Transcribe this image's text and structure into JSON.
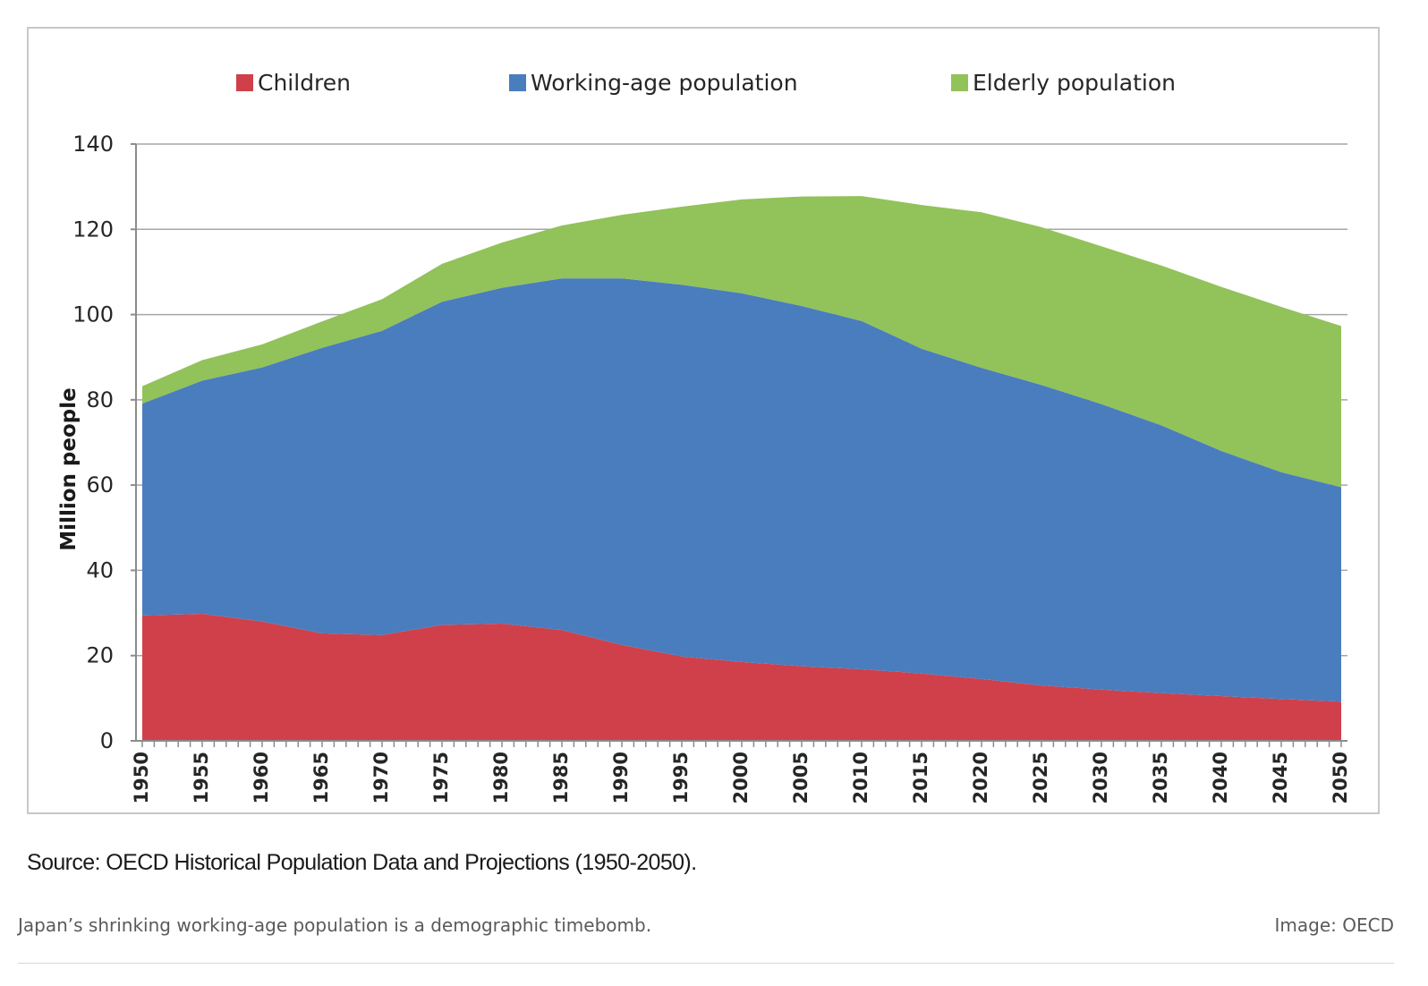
{
  "chart_data": {
    "type": "area",
    "stacked": true,
    "ylabel": "Million people",
    "ylim": [
      0,
      140
    ],
    "yticks": [
      0,
      20,
      40,
      60,
      80,
      100,
      120,
      140
    ],
    "xlim": [
      1950,
      2050
    ],
    "xticks": [
      1950,
      1955,
      1960,
      1965,
      1970,
      1975,
      1980,
      1985,
      1990,
      1995,
      2000,
      2005,
      2010,
      2015,
      2020,
      2025,
      2030,
      2035,
      2040,
      2045,
      2050
    ],
    "grid": true,
    "legend_position": "top",
    "x": [
      1950,
      1955,
      1960,
      1965,
      1970,
      1975,
      1980,
      1985,
      1990,
      1995,
      2000,
      2005,
      2010,
      2015,
      2020,
      2025,
      2030,
      2035,
      2040,
      2045,
      2050
    ],
    "series": [
      {
        "name": "Children",
        "color": "#d0404a",
        "values": [
          29.4,
          29.8,
          28.0,
          25.2,
          24.8,
          27.2,
          27.5,
          26.0,
          22.5,
          19.8,
          18.5,
          17.5,
          16.8,
          15.8,
          14.5,
          13.0,
          12.0,
          11.2,
          10.5,
          9.8,
          9.2
        ]
      },
      {
        "name": "Working-age population",
        "color": "#4a7dbe",
        "values": [
          49.7,
          54.7,
          59.6,
          67.0,
          71.4,
          75.8,
          78.8,
          82.5,
          86.0,
          87.2,
          86.5,
          84.5,
          81.7,
          76.2,
          73.0,
          70.5,
          67.0,
          62.8,
          57.5,
          53.2,
          50.3
        ]
      },
      {
        "name": "Elderly population",
        "color": "#92c25a",
        "values": [
          4.1,
          4.8,
          5.4,
          6.2,
          7.4,
          8.9,
          10.6,
          12.4,
          14.9,
          18.3,
          22.0,
          25.7,
          29.3,
          33.7,
          36.5,
          37.0,
          37.0,
          37.5,
          38.5,
          38.8,
          37.8
        ]
      }
    ]
  },
  "source_note": "Source: OECD Historical Population Data and Projections (1950-2050).",
  "caption": "Japan’s shrinking working-age population is a demographic timebomb.",
  "credit": "Image: OECD"
}
